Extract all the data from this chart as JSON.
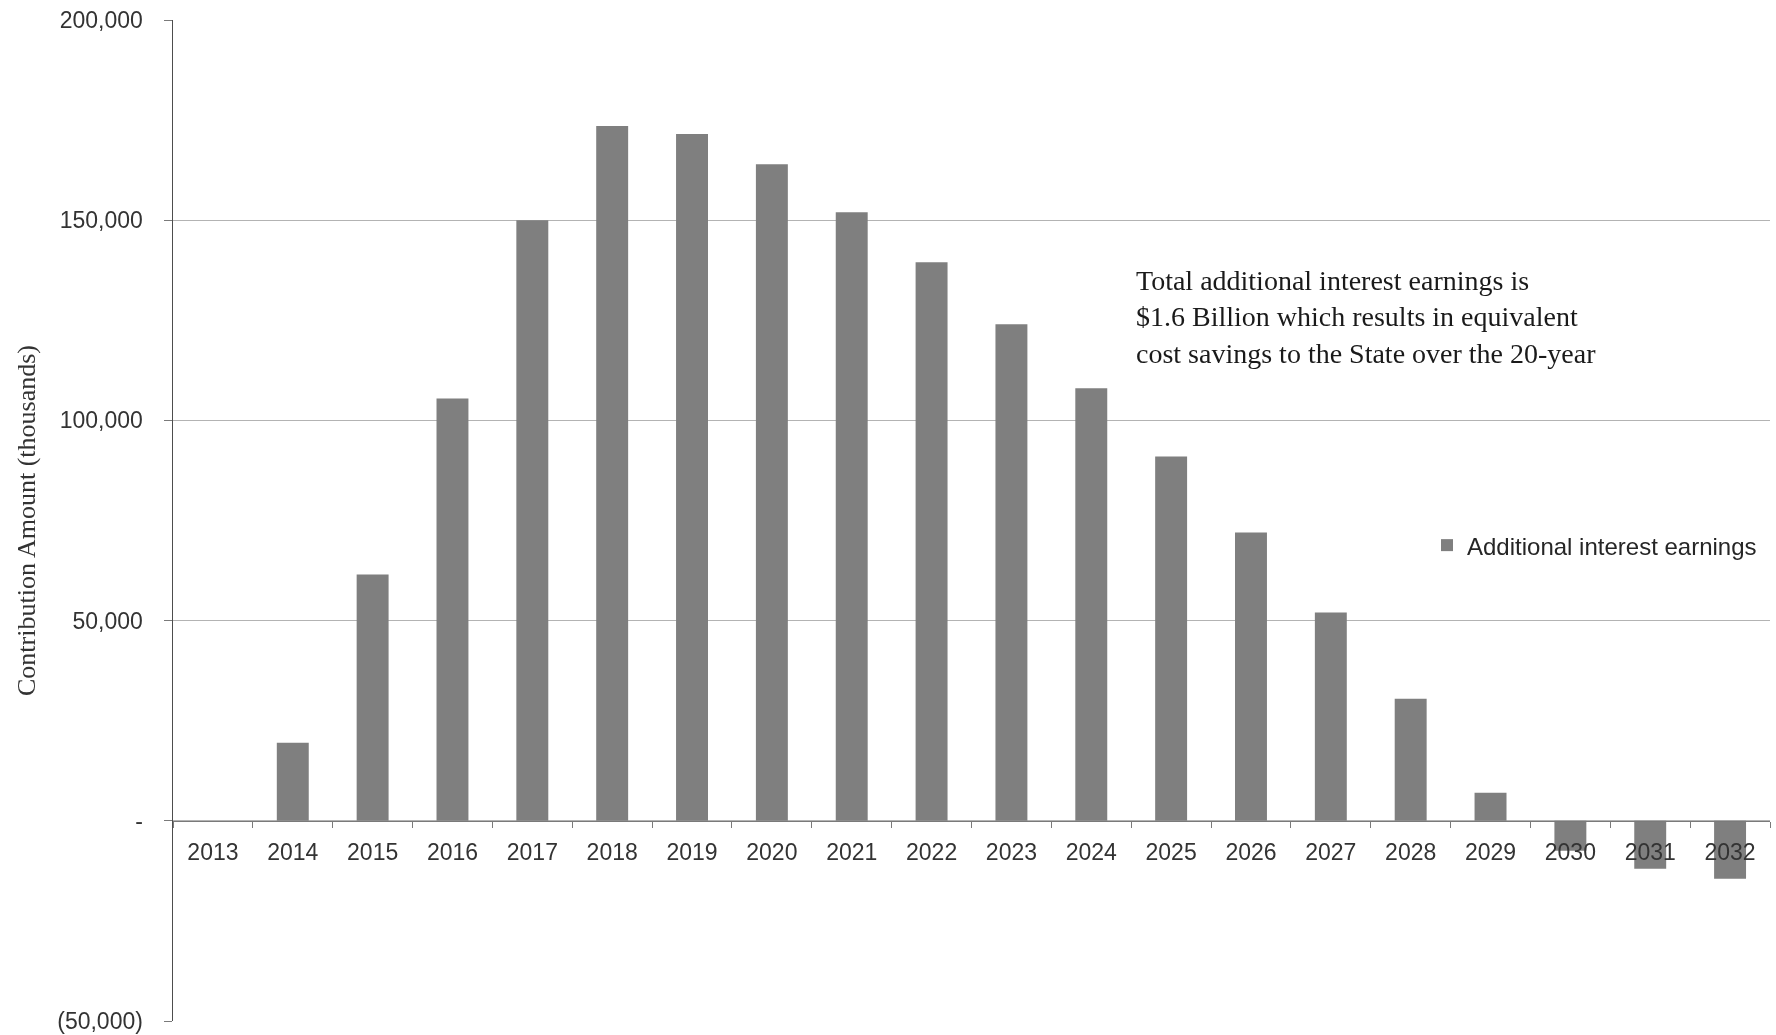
{
  "chart_data": {
    "type": "bar",
    "ylabel": "Contribution Amount (thousands)",
    "categories": [
      "2013",
      "2014",
      "2015",
      "2016",
      "2017",
      "2018",
      "2019",
      "2020",
      "2021",
      "2022",
      "2023",
      "2024",
      "2025",
      "2026",
      "2027",
      "2028",
      "2029",
      "2030",
      "2031",
      "2032"
    ],
    "series": [
      {
        "name": "Additional interest earnings",
        "color": "#7f7f7f",
        "values": [
          0,
          19500,
          61500,
          105500,
          150000,
          173500,
          171500,
          164000,
          152000,
          139500,
          124000,
          108000,
          91000,
          72000,
          52000,
          30500,
          7000,
          -7500,
          -12000,
          -14500
        ]
      }
    ],
    "ylim": [
      -50000,
      200000
    ],
    "yticks": [
      {
        "value": -50000,
        "label": "(50,000)"
      },
      {
        "value": 0,
        "label": "-"
      },
      {
        "value": 50000,
        "label": "50,000"
      },
      {
        "value": 100000,
        "label": "100,000"
      },
      {
        "value": 150000,
        "label": "150,000"
      },
      {
        "value": 200000,
        "label": "200,000"
      }
    ],
    "grid": "y",
    "legend": "right",
    "annotations": [
      "Total additional interest earnings is\n$1.6 Billion which results in equivalent\ncost savings to the State over the 20-year"
    ]
  }
}
